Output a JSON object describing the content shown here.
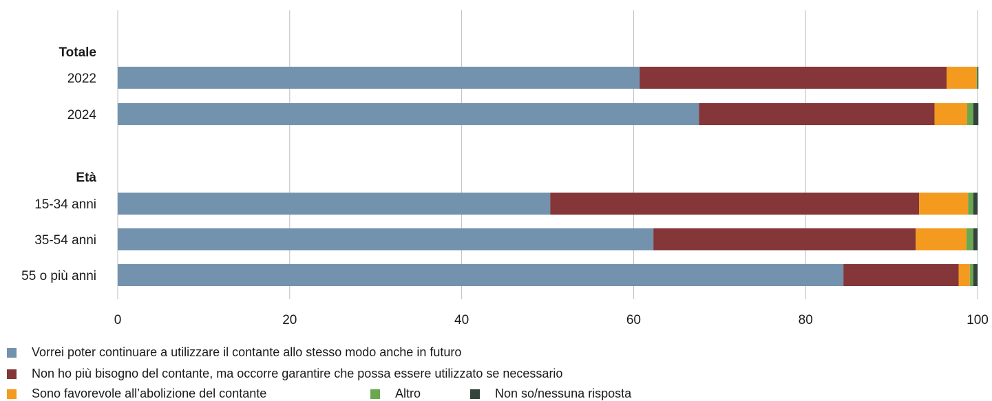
{
  "chart_data": {
    "type": "bar",
    "orientation": "horizontal",
    "stacked": true,
    "groups": [
      {
        "heading": "Totale",
        "categories": [
          "2022",
          "2024"
        ]
      },
      {
        "heading": "Età",
        "categories": [
          "15-34 anni",
          "35-54 anni",
          "55 o più anni"
        ]
      }
    ],
    "categories": [
      "2022",
      "2024",
      "15-34 anni",
      "35-54 anni",
      "55 o più anni"
    ],
    "series": [
      {
        "name": "Vorrei poter continuare a utilizzare il contante allo stesso modo anche in futuro",
        "color": "#7392ae",
        "values": [
          60.7,
          67.6,
          50.3,
          62.3,
          84.4
        ]
      },
      {
        "name": "Non ho più bisogno del contante, ma occorre garantire che possa essere utilizzato se necessario",
        "color": "#843638",
        "values": [
          35.7,
          27.4,
          42.9,
          30.5,
          13.4
        ]
      },
      {
        "name": "Sono favorevole all’abolizione del contante",
        "color": "#f39a1f",
        "values": [
          3.5,
          3.8,
          5.7,
          5.9,
          1.3
        ]
      },
      {
        "name": "Altro",
        "color": "#6aa84f",
        "values": [
          0.1,
          0.7,
          0.6,
          0.8,
          0.4
        ]
      },
      {
        "name": "Non so/nessuna risposta",
        "color": "#34443c",
        "values": [
          0.1,
          0.6,
          0.5,
          0.5,
          0.5
        ]
      }
    ],
    "x_ticks": [
      "0",
      "20",
      "40",
      "60",
      "80",
      "100"
    ],
    "xlim": [
      0,
      100
    ],
    "grid": true,
    "legend_position": "bottom-left"
  }
}
